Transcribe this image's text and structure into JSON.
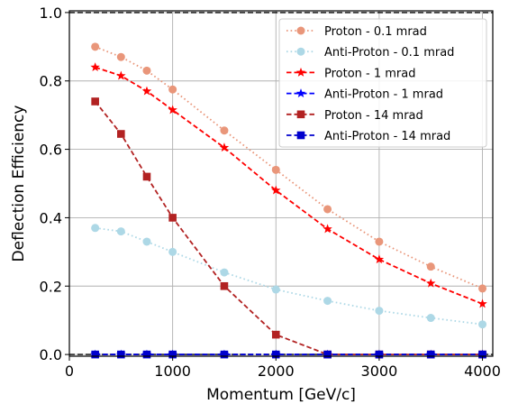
{
  "chart_data": {
    "type": "line",
    "title": "",
    "xlabel": "Momentum [GeV/c]",
    "ylabel": "Deflection Efficiency",
    "xlim": [
      0,
      4100
    ],
    "ylim": [
      -0.005,
      1.005
    ],
    "xticks": [
      0,
      1000,
      2000,
      3000,
      4000
    ],
    "yticks": [
      0.0,
      0.2,
      0.4,
      0.6,
      0.8,
      1.0
    ],
    "xtick_labels": [
      "0",
      "1000",
      "2000",
      "3000",
      "4000"
    ],
    "ytick_labels": [
      "0.0",
      "0.2",
      "0.4",
      "0.6",
      "0.8",
      "1.0"
    ],
    "grid": true,
    "legend_position": "top-right",
    "reference_lines": [
      1.0,
      0.0
    ],
    "x": [
      250,
      500,
      750,
      1000,
      1500,
      2000,
      2500,
      3000,
      3500,
      4000
    ],
    "series": [
      {
        "name": "Proton - 0.1 mrad",
        "color": "#e9967a",
        "dash": "dotted",
        "marker": "circle",
        "values": [
          0.9,
          0.87,
          0.83,
          0.775,
          0.655,
          0.54,
          0.425,
          0.33,
          0.257,
          0.193
        ]
      },
      {
        "name": "Anti-Proton - 0.1 mrad",
        "color": "#add8e6",
        "dash": "dotted",
        "marker": "circle",
        "values": [
          0.37,
          0.36,
          0.33,
          0.3,
          0.24,
          0.19,
          0.157,
          0.128,
          0.107,
          0.088
        ]
      },
      {
        "name": "Proton - 1 mrad",
        "color": "#ff0000",
        "dash": "dashed",
        "marker": "star",
        "values": [
          0.84,
          0.815,
          0.77,
          0.715,
          0.605,
          0.48,
          0.367,
          0.278,
          0.208,
          0.148
        ]
      },
      {
        "name": "Anti-Proton - 1 mrad",
        "color": "#0000ff",
        "dash": "dashed",
        "marker": "star",
        "values": [
          0,
          0,
          0,
          0,
          0,
          0,
          0,
          0,
          0,
          0
        ]
      },
      {
        "name": "Proton - 14 mrad",
        "color": "#b22222",
        "dash": "dashed",
        "marker": "square",
        "values": [
          0.74,
          0.645,
          0.52,
          0.4,
          0.2,
          0.058,
          0,
          0,
          0,
          0
        ]
      },
      {
        "name": "Anti-Proton - 14 mrad",
        "color": "#0000cd",
        "dash": "dashed",
        "marker": "square",
        "values": [
          0,
          0,
          0,
          0,
          0,
          0,
          0,
          0,
          0,
          0
        ]
      }
    ]
  }
}
